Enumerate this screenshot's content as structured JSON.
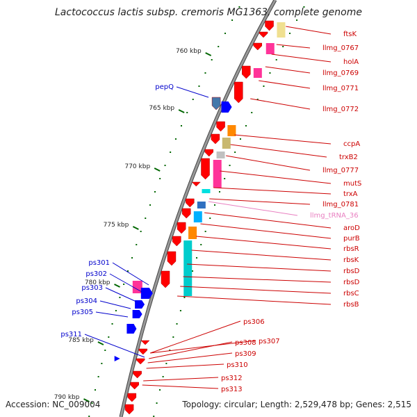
{
  "title": "Lactococcus lactis subsp. cremoris MG1363, complete genome",
  "footer": {
    "accession": "Accession: NC_009004",
    "summary": "Topology: circular; Length: 2,529,478 bp; Genes: 2,515"
  },
  "colors": {
    "reverse_label": "#cc0000",
    "forward_label": "#0000cc",
    "trna_label": "#e87fc0",
    "cds": "#ff0000",
    "forward_cds": "#0000ff",
    "tick": "#006600",
    "backbone": "#999999"
  },
  "ticks": [
    {
      "label": "760 kbp"
    },
    {
      "label": "765 kbp"
    },
    {
      "label": "770 kbp"
    },
    {
      "label": "775 kbp"
    },
    {
      "label": "780 kbp"
    },
    {
      "label": "785 kbp"
    },
    {
      "label": "790 kbp"
    }
  ],
  "right_labels": [
    "ftsK",
    "llmg_0767",
    "holA",
    "llmg_0769",
    "llmg_0771",
    "llmg_0772",
    "ccpA",
    "trxB2",
    "llmg_0777",
    "mutS",
    "trxA",
    "llmg_0781",
    "llmg_tRNA_36",
    "aroD",
    "purB",
    "rbsR",
    "rbsK",
    "rbsD",
    "rbsD",
    "rbsC",
    "rbsB"
  ],
  "right_labels_low": [
    "ps306",
    "ps307",
    "ps308",
    "ps309",
    "ps310",
    "ps312",
    "ps313"
  ],
  "left_labels": [
    "pepQ",
    "ps301",
    "ps302",
    "ps303",
    "ps304",
    "ps305",
    "ps311"
  ]
}
